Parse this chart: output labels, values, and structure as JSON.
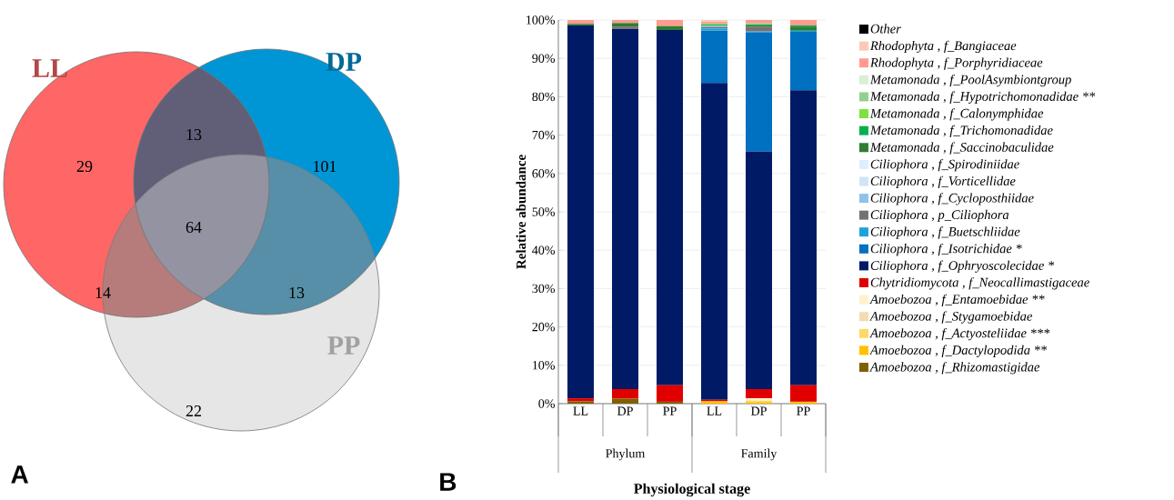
{
  "chart_data": [
    {
      "type": "other",
      "title": "A",
      "categories": [
        "LL",
        "DP",
        "PP"
      ],
      "colors": [
        "#ff6666",
        "#0096d6",
        "#e6e6e6"
      ],
      "annotations": [
        "29",
        "13",
        "101",
        "14",
        "64",
        "13",
        "22"
      ]
    },
    {
      "type": "bar",
      "title": "B",
      "stacked": true,
      "ylabel": "Relative abundance",
      "xlabel": "Physiological stage",
      "categories": [
        "LL",
        "DP",
        "PP",
        "LL",
        "DP",
        "PP"
      ],
      "annotations": [
        "Phylum",
        "Family"
      ],
      "ylim": [
        0,
        100
      ],
      "yticks": [
        {
          "value": 0,
          "label": "0%"
        },
        {
          "value": 10,
          "label": "10%"
        },
        {
          "value": 20,
          "label": "20%"
        },
        {
          "value": 30,
          "label": "30%"
        },
        {
          "value": 40,
          "label": "40%"
        },
        {
          "value": 50,
          "label": "50%"
        },
        {
          "value": 60,
          "label": "60%"
        },
        {
          "value": 70,
          "label": "70%"
        },
        {
          "value": 80,
          "label": "80%"
        },
        {
          "value": 90,
          "label": "90%"
        },
        {
          "value": 100,
          "label": "100%"
        }
      ],
      "grid": "y",
      "legend": "right",
      "series": [
        {
          "name": "Amoebozoa , f_Rhizomastigidae",
          "color": "#7f6000",
          "values": [
            0.6,
            1.3,
            0.5,
            null,
            null,
            null
          ]
        },
        {
          "name": "Amoebozoa , f_Dactylopodida  **",
          "color": "#ffc000",
          "values": [
            null,
            null,
            null,
            0.6,
            0.4,
            0.5
          ]
        },
        {
          "name": "Amoebozoa , f_Actyosteliidae  ***",
          "color": "#ffd966",
          "values": [
            null,
            null,
            null,
            null,
            0.4,
            null
          ]
        },
        {
          "name": "Amoebozoa , f_Stygamoebidae",
          "color": "#f2dcb4",
          "values": [
            null,
            null,
            null,
            null,
            null,
            null
          ]
        },
        {
          "name": "Amoebozoa , f_Entamoebidae  **",
          "color": "#fff2cc",
          "values": [
            null,
            null,
            null,
            null,
            0.6,
            null
          ]
        },
        {
          "name": "Chytridiomycota , f_Neocallimastigaceae",
          "color": "#e00000",
          "values": [
            0.8,
            2.5,
            4.3,
            0.4,
            2.4,
            4.3
          ]
        },
        {
          "name": "Ciliophora , f_Ophryoscolecidae  *",
          "color": "#001a66",
          "values": [
            97.2,
            93.9,
            92.6,
            82.6,
            61.9,
            76.9
          ]
        },
        {
          "name": "Ciliophora , f_Isotrichidae  *",
          "color": "#0070c0",
          "values": [
            null,
            null,
            null,
            13.7,
            31.1,
            15.2
          ]
        },
        {
          "name": "Ciliophora , f_Buetschliidae",
          "color": "#1fa2dc",
          "values": [
            null,
            null,
            null,
            0.5,
            0.2,
            0.3
          ]
        },
        {
          "name": "Ciliophora , p_Ciliophora",
          "color": "#767171",
          "values": [
            null,
            0.6,
            null,
            0.4,
            1.2,
            null
          ]
        },
        {
          "name": "Ciliophora , f_Cycloposthiidae",
          "color": "#8dc3e8",
          "values": [
            null,
            null,
            null,
            0.3,
            null,
            null
          ]
        },
        {
          "name": "Ciliophora , f_Vorticellidae",
          "color": "#d0e4f4",
          "values": [
            null,
            null,
            null,
            null,
            null,
            null
          ]
        },
        {
          "name": "Ciliophora , f_Spirodiniidae",
          "color": "#ddeeff",
          "values": [
            null,
            null,
            null,
            null,
            null,
            null
          ]
        },
        {
          "name": "Metamonada , f_Saccinobaculidae",
          "color": "#2e7d32",
          "values": [
            0.4,
            0.9,
            1.0,
            null,
            0.4,
            1.1
          ]
        },
        {
          "name": "Metamonada , f_Trichomonadidae",
          "color": "#00b050",
          "values": [
            null,
            null,
            null,
            0.3,
            0.2,
            0.3
          ]
        },
        {
          "name": "Metamonada , f_Calonymphidae",
          "color": "#7fe040",
          "values": [
            null,
            null,
            null,
            0.2,
            null,
            null
          ]
        },
        {
          "name": "Metamonada , f_Hypotrichomonadidae  **",
          "color": "#92d08f",
          "values": [
            null,
            null,
            null,
            null,
            0.3,
            null
          ]
        },
        {
          "name": "Metamonada , f_PoolAsymbiontgroup",
          "color": "#d9f0d3",
          "values": [
            null,
            null,
            null,
            null,
            null,
            null
          ]
        },
        {
          "name": "Rhodophyta , f_Porphyridiaceae",
          "color": "#ff9b8f",
          "values": [
            1.0,
            0.8,
            1.6,
            0.5,
            0.9,
            1.4
          ]
        },
        {
          "name": "Rhodophyta , f_Bangiaceae",
          "color": "#fcc9b8",
          "values": [
            null,
            null,
            null,
            0.5,
            null,
            null
          ]
        },
        {
          "name": "Other",
          "color": "#000000",
          "values": [
            null,
            null,
            null,
            null,
            null,
            null
          ]
        }
      ]
    }
  ]
}
